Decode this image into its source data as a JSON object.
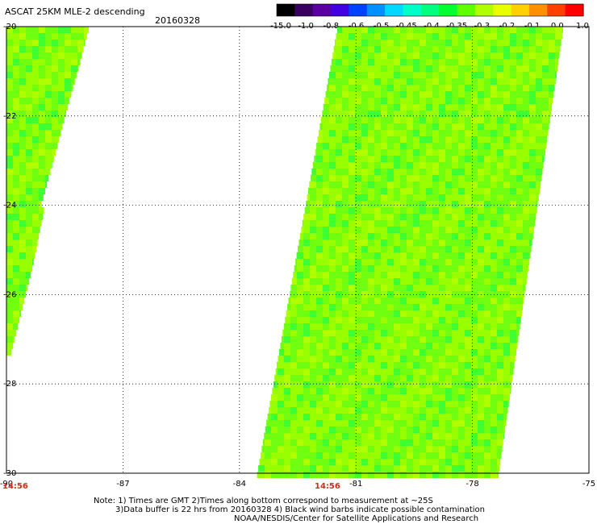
{
  "header": {
    "title": "ASCAT 25KM MLE-2 descending",
    "date": "20160328"
  },
  "colorbar": {
    "labels": [
      "-15.0",
      "-1.0",
      "-0.8",
      "-0.6",
      "-0.5",
      "-0.45",
      "-0.4",
      "-0.35",
      "-0.3",
      "-0.2",
      "-0.1",
      "0.0",
      "1.0"
    ],
    "colors": [
      "#000000",
      "#3a0060",
      "#5a00a0",
      "#4000e0",
      "#0040ff",
      "#0090ff",
      "#00d8ff",
      "#00ffc8",
      "#00ff80",
      "#00ff30",
      "#60ff00",
      "#b0ff00",
      "#e8ff00",
      "#ffd000",
      "#ff9000",
      "#ff4000",
      "#ff0000"
    ]
  },
  "map": {
    "lat_labels": [
      "-20",
      "-22",
      "-24",
      "-26",
      "-28",
      "-30"
    ],
    "lon_labels": [
      "-90",
      "-87",
      "-84",
      "-81",
      "-78",
      "-75"
    ],
    "lat_values": [
      -20,
      -22,
      -24,
      -26,
      -28,
      -30
    ],
    "lon_values": [
      -90,
      -87,
      -84,
      -81,
      -78,
      -75
    ]
  },
  "times": [
    "14:56",
    "14:56"
  ],
  "footer": {
    "line1": "Note: 1) Times are GMT 2)Times along bottom correspond to measurement at ~25S",
    "line2": "3)Data buffer is 22 hrs from 20160328 4) Black wind barbs indicate possible contamination",
    "line3": "NOAA/NESDIS/Center for Satellite Applications and Research"
  }
}
